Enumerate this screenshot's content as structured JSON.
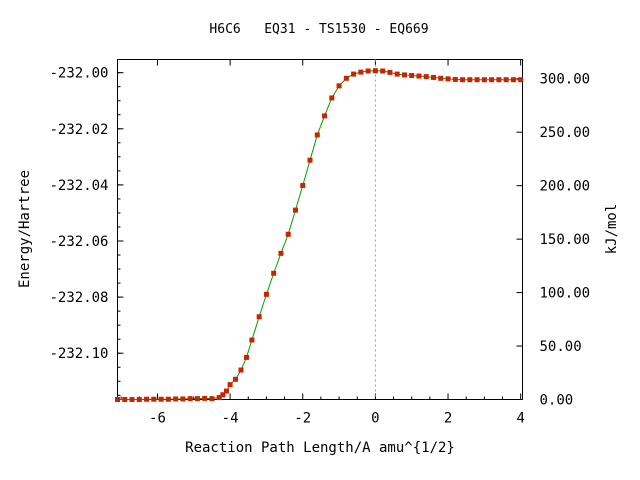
{
  "chart_data": {
    "type": "line",
    "title": "H6C6   EQ31 - TS1530 - EQ669",
    "xlabel": "Reaction Path Length/A amu^{1/2}",
    "ylabel": "Energy/Hartree",
    "y2label": "kJ/mol",
    "xlim": [
      -7.1,
      4.05
    ],
    "ylim": [
      -232.1165,
      -231.9953
    ],
    "y2lim": [
      0.0,
      318.0
    ],
    "x_ticks": [
      -6,
      -4,
      -2,
      0,
      2,
      4
    ],
    "x_tick_labels": [
      "-6",
      "-4",
      "-2",
      "0",
      "2",
      "4"
    ],
    "y_ticks": [
      -232.0,
      -232.02,
      -232.04,
      -232.06,
      -232.08,
      -232.1
    ],
    "y_tick_labels": [
      "-232.00",
      "-232.02",
      "-232.04",
      "-232.06",
      "-232.08",
      "-232.10"
    ],
    "y2_ticks": [
      0,
      50,
      100,
      150,
      200,
      250,
      300
    ],
    "y2_tick_labels": [
      "0.00",
      "50.00",
      "100.00",
      "150.00",
      "200.00",
      "250.00",
      "300.00"
    ],
    "ts_marker_x": 0.0,
    "grid": false,
    "line_color": "#00a000",
    "marker_color": "#cc2200",
    "ts_line_color": "#999999",
    "series": [
      {
        "x": [
          -7.1,
          -6.9,
          -6.7,
          -6.5,
          -6.3,
          -6.1,
          -5.9,
          -5.7,
          -5.5,
          -5.3,
          -5.1,
          -4.9,
          -4.7,
          -4.5,
          -4.3,
          -4.2,
          -4.1,
          -4.0,
          -3.85,
          -3.7,
          -3.55,
          -3.4,
          -3.2,
          -3.0,
          -2.8,
          -2.6,
          -2.4,
          -2.2,
          -2.0,
          -1.8,
          -1.6,
          -1.4,
          -1.2,
          -1.0,
          -0.8,
          -0.6,
          -0.4,
          -0.2,
          0.0,
          0.2,
          0.4,
          0.6,
          0.8,
          1.0,
          1.2,
          1.4,
          1.6,
          1.8,
          2.0,
          2.2,
          2.4,
          2.6,
          2.8,
          3.0,
          3.2,
          3.4,
          3.6,
          3.8,
          4.0
        ],
        "y": [
          -232.1165,
          -232.1165,
          -232.1165,
          -232.1165,
          -232.1164,
          -232.1164,
          -232.1164,
          -232.1164,
          -232.1163,
          -232.1163,
          -232.1162,
          -232.1162,
          -232.1161,
          -232.1162,
          -232.1158,
          -232.1148,
          -232.1135,
          -232.1112,
          -232.1093,
          -232.106,
          -232.1015,
          -232.0953,
          -232.087,
          -232.079,
          -232.0715,
          -232.0644,
          -232.0576,
          -232.049,
          -232.0402,
          -232.0312,
          -232.0222,
          -232.0154,
          -232.009,
          -232.0047,
          -232.002,
          -232.0005,
          -231.9998,
          -231.9994,
          -231.9993,
          -231.9994,
          -231.9999,
          -232.0005,
          -232.0008,
          -232.001,
          -232.0012,
          -232.0014,
          -232.0017,
          -232.002,
          -232.0022,
          -232.0024,
          -232.0025,
          -232.0025,
          -232.0025,
          -232.0025,
          -232.0025,
          -232.0025,
          -232.0025,
          -232.0025,
          -232.0025
        ]
      }
    ]
  }
}
